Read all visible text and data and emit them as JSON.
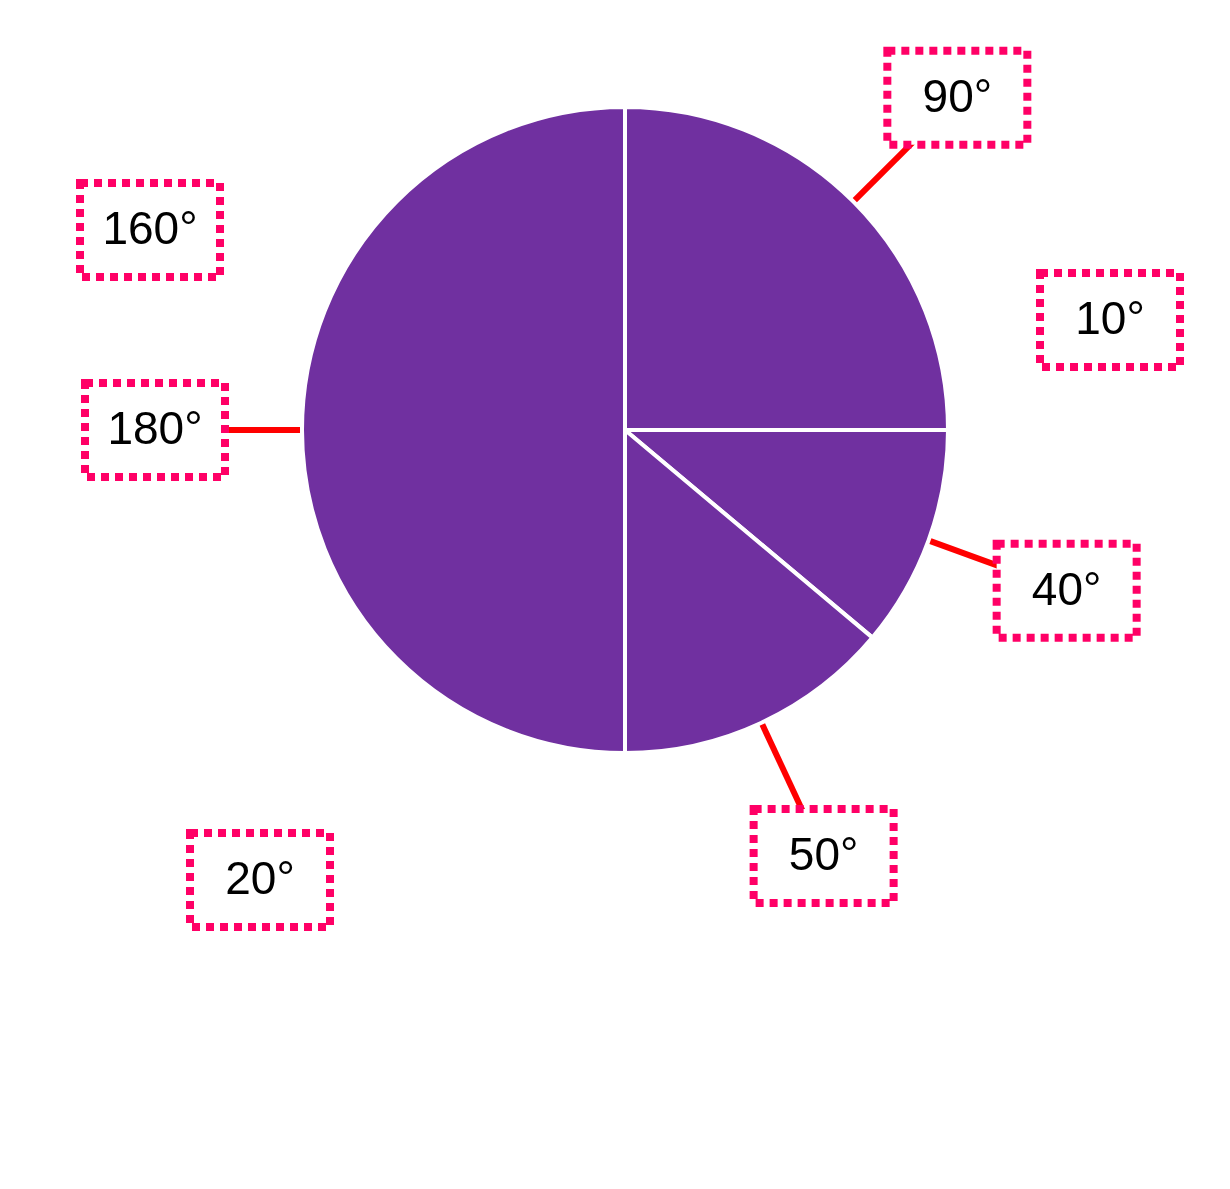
{
  "chart_data": {
    "type": "pie",
    "categories": [
      null,
      null,
      null,
      null
    ],
    "values": [
      90,
      40,
      50,
      180
    ],
    "colors": [
      "#7030a0",
      "#7030a0",
      "#7030a0",
      "#7030a0"
    ],
    "value_labels": [
      "90°",
      "40°",
      "50°",
      "180°"
    ],
    "annotations": [
      "160°",
      "10°",
      "20°"
    ]
  }
}
